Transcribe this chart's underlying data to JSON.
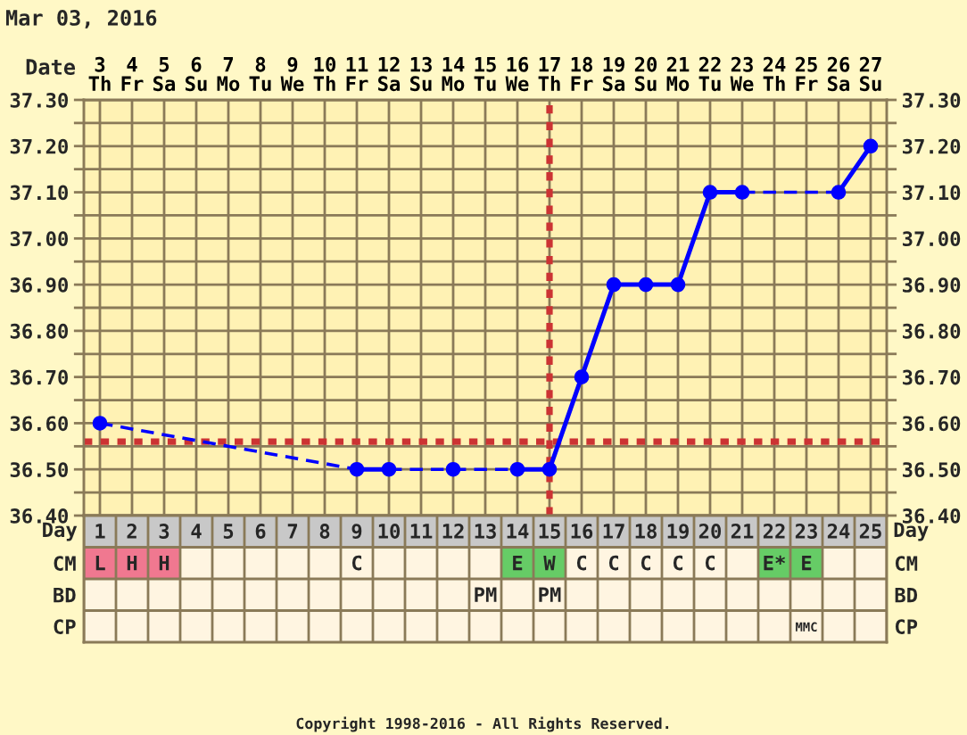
{
  "chart_data": [
    {
      "type": "line",
      "title": "Mar 03, 2016",
      "xlabel": "Date",
      "categories": [
        "3\nTh",
        "4\nFr",
        "5\nSa",
        "6\nSu",
        "7\nMo",
        "8\nTu",
        "9\nWe",
        "10\nTh",
        "11\nFr",
        "12\nSa",
        "13\nSu",
        "14\nMo",
        "15\nTu",
        "16\nWe",
        "17\nTh",
        "18\nFr",
        "19\nSa",
        "20\nSu",
        "21\nMo",
        "22\nTu",
        "23\nWe",
        "24\nTh",
        "25\nFr",
        "26\nSa",
        "27\nSu"
      ],
      "series": [
        {
          "color": "#0000ff",
          "values": [
            36.6,
            null,
            null,
            null,
            null,
            null,
            null,
            null,
            36.5,
            36.5,
            null,
            36.5,
            null,
            36.5,
            36.5,
            36.7,
            36.9,
            36.9,
            36.9,
            37.1,
            37.1,
            null,
            null,
            37.1,
            37.2
          ]
        }
      ],
      "marker": "circle",
      "line_style": "solid",
      "grid": true,
      "ylim": [
        36.4,
        37.3
      ],
      "yticks": [
        {
          "value": 36.4,
          "label": "36.40"
        },
        {
          "value": 36.45,
          "label": null
        },
        {
          "value": 36.5,
          "label": "36.50"
        },
        {
          "value": 36.55,
          "label": null
        },
        {
          "value": 36.6,
          "label": "36.60"
        },
        {
          "value": 36.65,
          "label": null
        },
        {
          "value": 36.7,
          "label": "36.70"
        },
        {
          "value": 36.75,
          "label": null
        },
        {
          "value": 36.8,
          "label": "36.80"
        },
        {
          "value": 36.85,
          "label": null
        },
        {
          "value": 36.9,
          "label": "36.90"
        },
        {
          "value": 36.95,
          "label": null
        },
        {
          "value": 37.0,
          "label": "37.00"
        },
        {
          "value": 37.05,
          "label": null
        },
        {
          "value": 37.1,
          "label": "37.10"
        },
        {
          "value": 37.15,
          "label": null
        },
        {
          "value": 37.2,
          "label": "37.20"
        },
        {
          "value": 37.25,
          "label": null
        },
        {
          "value": 37.3,
          "label": "37.30"
        }
      ],
      "y2lim": [
        36.4,
        37.3
      ],
      "y2ticks": [
        {
          "value": 36.4,
          "label": "36.40"
        },
        {
          "value": 36.45,
          "label": null
        },
        {
          "value": 36.5,
          "label": "36.50"
        },
        {
          "value": 36.55,
          "label": null
        },
        {
          "value": 36.6,
          "label": "36.60"
        },
        {
          "value": 36.65,
          "label": null
        },
        {
          "value": 36.7,
          "label": "36.70"
        },
        {
          "value": 36.75,
          "label": null
        },
        {
          "value": 36.8,
          "label": "36.80"
        },
        {
          "value": 36.85,
          "label": null
        },
        {
          "value": 36.9,
          "label": "36.90"
        },
        {
          "value": 36.95,
          "label": null
        },
        {
          "value": 37.0,
          "label": "37.00"
        },
        {
          "value": 37.05,
          "label": null
        },
        {
          "value": 37.1,
          "label": "37.10"
        },
        {
          "value": 37.15,
          "label": null
        },
        {
          "value": 37.2,
          "label": "37.20"
        },
        {
          "value": 37.25,
          "label": null
        },
        {
          "value": 37.3,
          "label": "37.30"
        }
      ],
      "ref_lines": [
        {
          "axis": "y",
          "value": 36.56,
          "color": "#cc3333",
          "line_style": "dotted"
        },
        {
          "axis": "x",
          "value": "17\nTh",
          "color": "#cc3333",
          "line_style": "dotted"
        }
      ],
      "annotations": [
        "Copyright 1998-2016 - All Rights Reserved."
      ]
    },
    {
      "type": "heatmap",
      "xlabel": "Day",
      "grid": true,
      "categories": [
        "1",
        "2",
        "3",
        "4",
        "5",
        "6",
        "7",
        "8",
        "9",
        "10",
        "11",
        "12",
        "13",
        "14",
        "15",
        "16",
        "17",
        "18",
        "19",
        "20",
        "21",
        "22",
        "23",
        "24",
        "25"
      ],
      "y_categories": [
        "CM",
        "BD",
        "CP"
      ],
      "y2_categories": [
        "CM",
        "BD",
        "CP"
      ],
      "cells": [
        [
          null,
          null,
          null,
          null,
          null,
          null,
          null,
          null,
          null,
          null,
          null,
          null,
          null,
          null,
          null,
          null,
          null,
          null,
          null,
          null,
          null,
          null,
          null,
          null,
          null
        ],
        [
          null,
          null,
          null,
          null,
          null,
          null,
          null,
          null,
          null,
          null,
          null,
          null,
          null,
          null,
          null,
          null,
          null,
          null,
          null,
          null,
          null,
          null,
          null,
          null,
          null
        ],
        [
          null,
          null,
          null,
          null,
          null,
          null,
          null,
          null,
          null,
          null,
          null,
          null,
          null,
          null,
          null,
          null,
          null,
          null,
          null,
          null,
          null,
          null,
          null,
          null,
          null
        ]
      ],
      "cell_labels": [
        [
          "L",
          "H",
          "H",
          null,
          null,
          null,
          null,
          null,
          "C",
          null,
          null,
          null,
          null,
          "E",
          "W",
          "C",
          "C",
          "C",
          "C",
          "C",
          null,
          "E*",
          "E",
          null,
          null
        ],
        [
          null,
          null,
          null,
          null,
          null,
          null,
          null,
          null,
          null,
          null,
          null,
          null,
          "PM",
          null,
          "PM",
          null,
          null,
          null,
          null,
          null,
          null,
          null,
          null,
          null,
          null
        ],
        [
          null,
          null,
          null,
          null,
          null,
          null,
          null,
          null,
          null,
          null,
          null,
          null,
          null,
          null,
          null,
          null,
          null,
          null,
          null,
          null,
          null,
          null,
          "MMC",
          null,
          null
        ]
      ],
      "colors": [
        [
          "#f07890",
          "#f07890",
          "#f07890",
          null,
          null,
          null,
          null,
          null,
          null,
          null,
          null,
          null,
          null,
          "#66cc66",
          "#66cc66",
          null,
          null,
          null,
          null,
          null,
          null,
          "#66cc66",
          "#66cc66",
          null,
          null
        ],
        [
          null,
          null,
          null,
          null,
          null,
          null,
          null,
          null,
          null,
          null,
          null,
          null,
          null,
          null,
          null,
          null,
          null,
          null,
          null,
          null,
          null,
          null,
          null,
          null,
          null
        ],
        [
          null,
          null,
          null,
          null,
          null,
          null,
          null,
          null,
          null,
          null,
          null,
          null,
          null,
          null,
          null,
          null,
          null,
          null,
          null,
          null,
          null,
          null,
          null,
          null,
          null
        ]
      ]
    }
  ]
}
